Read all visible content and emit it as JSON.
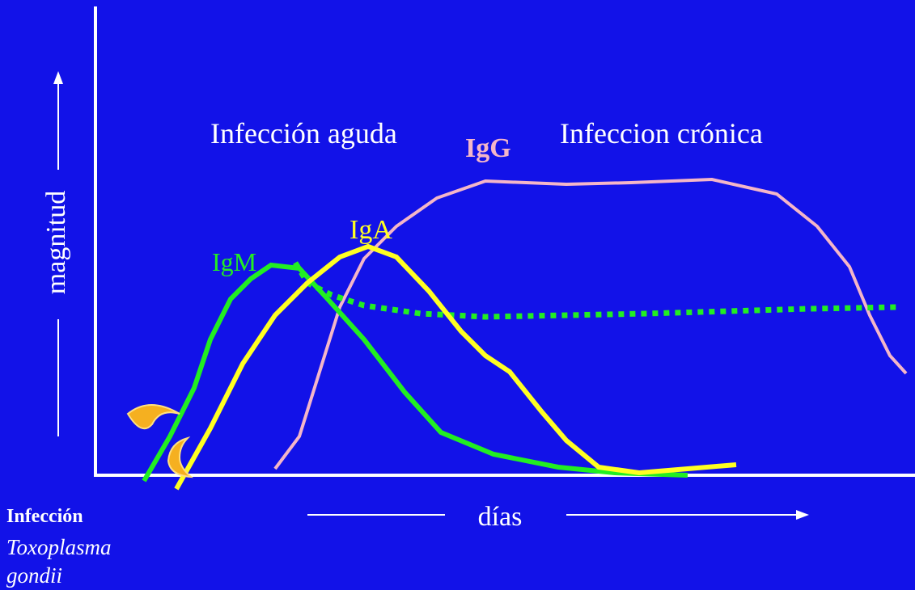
{
  "labels": {
    "acute": "Infección aguda",
    "chronic": "Infeccion crónica",
    "igg": "IgG",
    "iga": "IgA",
    "igm": "IgM",
    "y_axis": "magnitud",
    "x_axis": "días"
  },
  "footer": {
    "infection": "Infección",
    "organism": "Toxoplasma gondii"
  }
}
